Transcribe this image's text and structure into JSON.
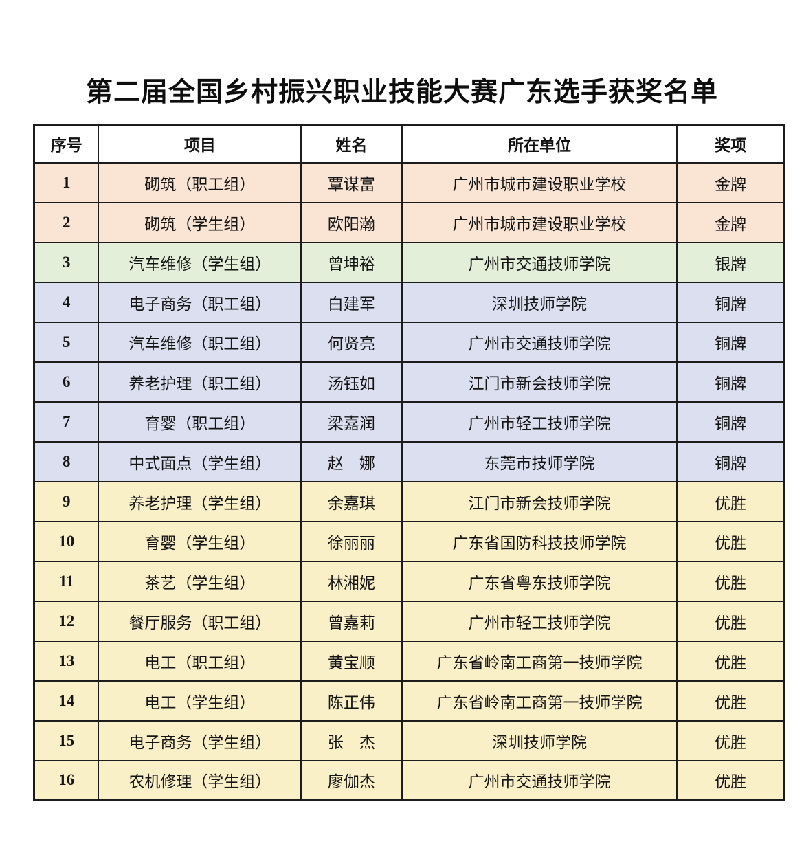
{
  "title": "第二届全国乡村振兴职业技能大赛广东选手获奖名单",
  "table": {
    "columns": [
      "序号",
      "项目",
      "姓名",
      "所在单位",
      "奖项"
    ],
    "rows": [
      {
        "no": "1",
        "project": "砌筑（职工组）",
        "name": "覃谋富",
        "org": "广州市城市建设职业学校",
        "award": "金牌",
        "tier": "gold"
      },
      {
        "no": "2",
        "project": "砌筑（学生组）",
        "name": "欧阳瀚",
        "org": "广州市城市建设职业学校",
        "award": "金牌",
        "tier": "gold"
      },
      {
        "no": "3",
        "project": "汽车维修（学生组）",
        "name": "曾坤裕",
        "org": "广州市交通技师学院",
        "award": "银牌",
        "tier": "silver"
      },
      {
        "no": "4",
        "project": "电子商务（职工组）",
        "name": "白建军",
        "org": "深圳技师学院",
        "award": "铜牌",
        "tier": "bronze"
      },
      {
        "no": "5",
        "project": "汽车维修（职工组）",
        "name": "何贤亮",
        "org": "广州市交通技师学院",
        "award": "铜牌",
        "tier": "bronze"
      },
      {
        "no": "6",
        "project": "养老护理（职工组）",
        "name": "汤钰如",
        "org": "江门市新会技师学院",
        "award": "铜牌",
        "tier": "bronze"
      },
      {
        "no": "7",
        "project": "育婴（职工组）",
        "name": "梁嘉润",
        "org": "广州市轻工技师学院",
        "award": "铜牌",
        "tier": "bronze"
      },
      {
        "no": "8",
        "project": "中式面点（学生组）",
        "name": "赵　娜",
        "org": "东莞市技师学院",
        "award": "铜牌",
        "tier": "bronze"
      },
      {
        "no": "9",
        "project": "养老护理（学生组）",
        "name": "余嘉琪",
        "org": "江门市新会技师学院",
        "award": "优胜",
        "tier": "merit"
      },
      {
        "no": "10",
        "project": "育婴（学生组）",
        "name": "徐丽丽",
        "org": "广东省国防科技技师学院",
        "award": "优胜",
        "tier": "merit"
      },
      {
        "no": "11",
        "project": "茶艺（学生组）",
        "name": "林湘妮",
        "org": "广东省粤东技师学院",
        "award": "优胜",
        "tier": "merit"
      },
      {
        "no": "12",
        "project": "餐厅服务（职工组）",
        "name": "曾嘉莉",
        "org": "广州市轻工技师学院",
        "award": "优胜",
        "tier": "merit"
      },
      {
        "no": "13",
        "project": "电工（职工组）",
        "name": "黄宝顺",
        "org": "广东省岭南工商第一技师学院",
        "award": "优胜",
        "tier": "merit"
      },
      {
        "no": "14",
        "project": "电工（学生组）",
        "name": "陈正伟",
        "org": "广东省岭南工商第一技师学院",
        "award": "优胜",
        "tier": "merit"
      },
      {
        "no": "15",
        "project": "电子商务（学生组）",
        "name": "张　杰",
        "org": "深圳技师学院",
        "award": "优胜",
        "tier": "merit"
      },
      {
        "no": "16",
        "project": "农机修理（学生组）",
        "name": "廖伽杰",
        "org": "广州市交通技师学院",
        "award": "优胜",
        "tier": "merit"
      }
    ]
  },
  "colors": {
    "gold": "#fae5d4",
    "silver": "#e4efda",
    "bronze": "#dcdff0",
    "merit": "#faf0c7",
    "border": "#1c1c1c",
    "text": "#141414"
  }
}
